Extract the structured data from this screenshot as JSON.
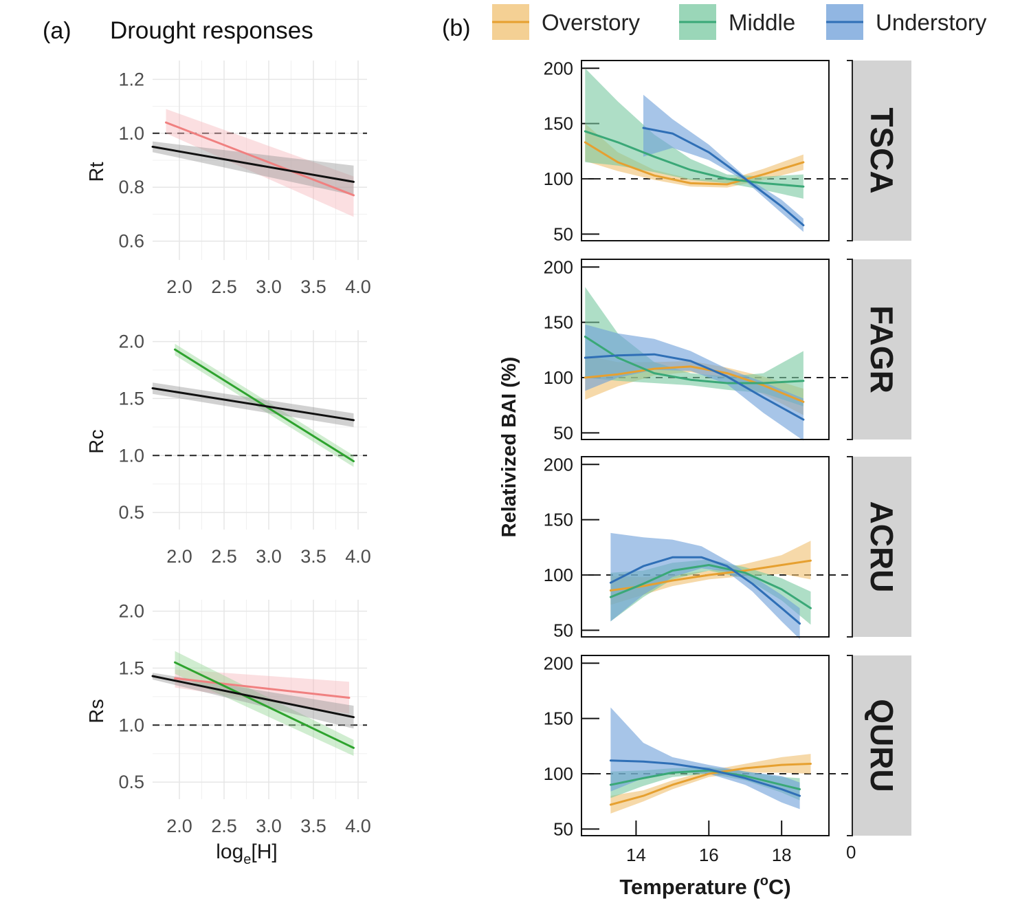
{
  "panel_a": {
    "tag": "(a)",
    "title": "Drought responses",
    "xlabel_main": "log",
    "xlabel_sub": "e",
    "xlabel_tail": "[H]"
  },
  "panel_b": {
    "tag": "(b)",
    "ylabel": "Relativized BAI (%)",
    "xlabel_main": "Temperature (",
    "xlabel_sup": "o",
    "xlabel_tail": "C)",
    "stray_tick": "0"
  },
  "colors": {
    "pink": "#f08080",
    "black": "#111111",
    "green_a": "#2ea32e",
    "overstory": "#e6a030",
    "middle": "#3aa877",
    "understory": "#2f6fb6",
    "overstory_fill": "#f0c070",
    "middle_fill": "#78c8a0",
    "understory_fill": "#6c9ed8",
    "strip": "#d3d3d3"
  },
  "chart_data": [
    {
      "id": "rt",
      "type": "line",
      "ylabel": "Rt",
      "xlim": [
        1.7,
        4.1
      ],
      "ylim": [
        0.53,
        1.27
      ],
      "xticks": [
        "2.0",
        "2.5",
        "3.0",
        "3.5",
        "4.0"
      ],
      "yticks": [
        "0.6",
        "0.8",
        "1.0",
        "1.2"
      ],
      "reference_line": 1.0,
      "series": [
        {
          "color": "pink",
          "x": [
            1.85,
            3.95
          ],
          "y": [
            1.04,
            0.77
          ],
          "band_lower": [
            1.0,
            0.69
          ],
          "band_upper": [
            1.09,
            0.84
          ]
        },
        {
          "color": "black",
          "x": [
            1.7,
            3.95
          ],
          "y": [
            0.95,
            0.82
          ],
          "band_lower": [
            0.93,
            0.77
          ],
          "band_upper": [
            0.97,
            0.88
          ]
        }
      ]
    },
    {
      "id": "rc",
      "type": "line",
      "ylabel": "Rc",
      "xlim": [
        1.7,
        4.1
      ],
      "ylim": [
        0.35,
        2.1
      ],
      "xticks": [
        "2.0",
        "2.5",
        "3.0",
        "3.5",
        "4.0"
      ],
      "yticks": [
        "0.5",
        "1.0",
        "1.5",
        "2.0"
      ],
      "reference_line": 1.0,
      "series": [
        {
          "color": "green_a",
          "x": [
            1.95,
            3.95
          ],
          "y": [
            1.93,
            0.95
          ],
          "band_lower": [
            1.88,
            0.9
          ],
          "band_upper": [
            1.98,
            1.0
          ]
        },
        {
          "color": "black",
          "x": [
            1.7,
            3.95
          ],
          "y": [
            1.59,
            1.31
          ],
          "band_lower": [
            1.54,
            1.25
          ],
          "band_upper": [
            1.64,
            1.37
          ]
        }
      ]
    },
    {
      "id": "rs",
      "type": "line",
      "ylabel": "Rs",
      "xlim": [
        1.7,
        4.1
      ],
      "ylim": [
        0.35,
        2.1
      ],
      "xticks": [
        "2.0",
        "2.5",
        "3.0",
        "3.5",
        "4.0"
      ],
      "yticks": [
        "0.5",
        "1.0",
        "1.5",
        "2.0"
      ],
      "reference_line": 1.0,
      "series": [
        {
          "color": "pink",
          "x": [
            1.95,
            3.9
          ],
          "y": [
            1.41,
            1.24
          ],
          "band_lower": [
            1.33,
            1.1
          ],
          "band_upper": [
            1.49,
            1.38
          ]
        },
        {
          "color": "green_a",
          "x": [
            1.95,
            3.95
          ],
          "y": [
            1.55,
            0.8
          ],
          "band_lower": [
            1.45,
            0.73
          ],
          "band_upper": [
            1.65,
            0.87
          ]
        },
        {
          "color": "black",
          "x": [
            1.7,
            3.95
          ],
          "y": [
            1.43,
            1.07
          ],
          "band_lower": [
            1.4,
            0.97
          ],
          "band_upper": [
            1.46,
            1.17
          ]
        }
      ]
    },
    {
      "id": "tsca",
      "type": "line",
      "strip": "TSCA",
      "xlim": [
        12.5,
        19.3
      ],
      "ylim": [
        44,
        207
      ],
      "xticks": [],
      "yticks": [
        "50",
        "100",
        "150",
        "200"
      ],
      "reference_line": 100,
      "series": [
        {
          "color": "overstory",
          "x": [
            12.6,
            13.5,
            14.5,
            15.5,
            16.5,
            17.5,
            18.6
          ],
          "y": [
            133,
            115,
            103,
            96,
            95,
            104,
            115
          ],
          "band_lower": [
            116,
            107,
            99,
            93,
            92,
            99,
            108
          ],
          "band_upper": [
            150,
            124,
            108,
            100,
            99,
            109,
            122
          ]
        },
        {
          "color": "middle",
          "x": [
            12.6,
            13.5,
            14.5,
            15.5,
            16.5,
            17.5,
            18.6
          ],
          "y": [
            143,
            133,
            120,
            108,
            100,
            96,
            93
          ],
          "band_lower": [
            115,
            112,
            106,
            99,
            96,
            90,
            82
          ],
          "band_upper": [
            200,
            170,
            140,
            118,
            104,
            102,
            104
          ]
        },
        {
          "color": "understory",
          "x": [
            14.2,
            15.0,
            16.0,
            17.0,
            18.0,
            18.6
          ],
          "y": [
            146,
            141,
            124,
            100,
            75,
            58
          ],
          "band_lower": [
            120,
            128,
            117,
            98,
            69,
            52
          ],
          "band_upper": [
            176,
            154,
            131,
            102,
            81,
            64
          ]
        }
      ]
    },
    {
      "id": "fagr",
      "type": "line",
      "strip": "FAGR",
      "xlim": [
        12.5,
        19.3
      ],
      "ylim": [
        44,
        207
      ],
      "xticks": [],
      "yticks": [
        "50",
        "100",
        "150",
        "200"
      ],
      "reference_line": 100,
      "series": [
        {
          "color": "overstory",
          "x": [
            12.6,
            13.5,
            14.5,
            15.5,
            16.5,
            17.5,
            18.6
          ],
          "y": [
            100,
            103,
            108,
            110,
            104,
            93,
            78
          ],
          "band_lower": [
            80,
            92,
            102,
            105,
            99,
            85,
            66
          ],
          "band_upper": [
            120,
            114,
            114,
            115,
            109,
            101,
            90
          ]
        },
        {
          "color": "middle",
          "x": [
            12.6,
            13.5,
            14.5,
            15.5,
            16.5,
            17.5,
            18.6
          ],
          "y": [
            137,
            118,
            104,
            98,
            95,
            95,
            97
          ],
          "band_lower": [
            100,
            97,
            95,
            93,
            89,
            86,
            74
          ],
          "band_upper": [
            182,
            140,
            114,
            104,
            101,
            104,
            124
          ]
        },
        {
          "color": "understory",
          "x": [
            12.6,
            13.5,
            14.5,
            15.5,
            16.5,
            17.5,
            18.6
          ],
          "y": [
            118,
            120,
            121,
            115,
            101,
            82,
            62
          ],
          "band_lower": [
            88,
            100,
            107,
            106,
            94,
            68,
            43
          ],
          "band_upper": [
            148,
            140,
            135,
            124,
            108,
            96,
            81
          ]
        }
      ]
    },
    {
      "id": "acru",
      "type": "line",
      "strip": "ACRU",
      "xlim": [
        12.5,
        19.3
      ],
      "ylim": [
        44,
        207
      ],
      "xticks": [],
      "yticks": [
        "50",
        "100",
        "150",
        "200"
      ],
      "reference_line": 100,
      "series": [
        {
          "color": "overstory",
          "x": [
            13.3,
            14.2,
            15.0,
            16.0,
            17.0,
            18.0,
            18.8
          ],
          "y": [
            86,
            90,
            95,
            100,
            104,
            109,
            113
          ],
          "band_lower": [
            73,
            82,
            90,
            96,
            99,
            101,
            96
          ],
          "band_upper": [
            99,
            98,
            100,
            104,
            110,
            118,
            131
          ]
        },
        {
          "color": "middle",
          "x": [
            13.3,
            14.2,
            15.0,
            16.0,
            17.0,
            18.0,
            18.8
          ],
          "y": [
            80,
            92,
            104,
            109,
            102,
            87,
            70
          ],
          "band_lower": [
            58,
            80,
            96,
            104,
            97,
            77,
            55
          ],
          "band_upper": [
            102,
            104,
            111,
            114,
            107,
            97,
            85
          ]
        },
        {
          "color": "understory",
          "x": [
            13.3,
            14.2,
            15.0,
            15.8,
            16.5,
            17.2,
            18.0,
            18.5
          ],
          "y": [
            93,
            108,
            116,
            116,
            108,
            92,
            70,
            56
          ],
          "band_lower": [
            58,
            82,
            98,
            106,
            103,
            85,
            58,
            42
          ],
          "band_upper": [
            138,
            134,
            132,
            126,
            113,
            99,
            82,
            70
          ]
        }
      ]
    },
    {
      "id": "quru",
      "type": "line",
      "strip": "QURU",
      "xlim": [
        12.5,
        19.3
      ],
      "ylim": [
        44,
        207
      ],
      "xticks": [
        "14",
        "16",
        "18"
      ],
      "yticks": [
        "50",
        "100",
        "150",
        "200"
      ],
      "reference_line": 100,
      "series": [
        {
          "color": "overstory",
          "x": [
            13.3,
            14.2,
            15.0,
            16.0,
            17.0,
            18.0,
            18.8
          ],
          "y": [
            72,
            80,
            90,
            100,
            105,
            108,
            109
          ],
          "band_lower": [
            64,
            75,
            86,
            97,
            101,
            101,
            100
          ],
          "band_upper": [
            80,
            85,
            94,
            103,
            109,
            115,
            118
          ]
        },
        {
          "color": "middle",
          "x": [
            13.3,
            14.2,
            15.0,
            16.0,
            17.0,
            18.0,
            18.5
          ],
          "y": [
            90,
            96,
            101,
            103,
            98,
            90,
            86
          ],
          "band_lower": [
            78,
            89,
            97,
            100,
            94,
            83,
            76
          ],
          "band_upper": [
            102,
            103,
            105,
            106,
            102,
            97,
            96
          ]
        },
        {
          "color": "understory",
          "x": [
            13.3,
            14.2,
            15.0,
            16.0,
            17.0,
            18.0,
            18.5
          ],
          "y": [
            112,
            111,
            109,
            104,
            96,
            86,
            80
          ],
          "band_lower": [
            84,
            96,
            102,
            100,
            90,
            74,
            68
          ],
          "band_upper": [
            160,
            128,
            115,
            108,
            102,
            98,
            92
          ]
        }
      ]
    }
  ],
  "legend": [
    {
      "label": "Overstory",
      "color": "overstory"
    },
    {
      "label": "Middle",
      "color": "middle"
    },
    {
      "label": "Understory",
      "color": "understory"
    }
  ]
}
